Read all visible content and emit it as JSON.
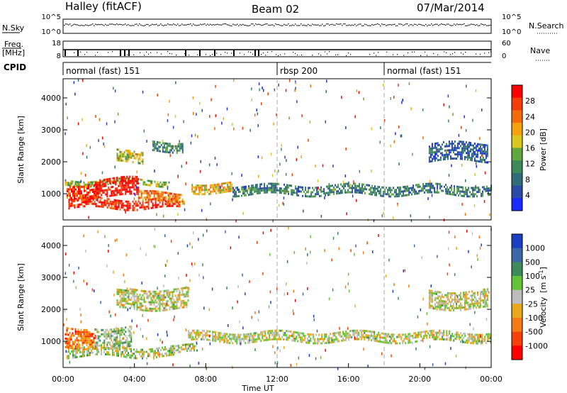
{
  "header": {
    "station": "Halley (fitACF)",
    "beam": "Beam 02",
    "date": "07/Mar/2014"
  },
  "status_panels": {
    "nsky_label": "N.Sky",
    "nsky_ticks": [
      "10^5",
      "10^0"
    ],
    "nsearch_label": "N.Search",
    "nsearch_ticks": [
      "10^5",
      "10^0"
    ],
    "freq_label_line1": "Freq.",
    "freq_label_line2": "[MHz]",
    "freq_ticks": [
      "18",
      "8"
    ],
    "nave_label": "Nave",
    "nave_ticks": [
      "60",
      "0"
    ],
    "cpid_label": "CPID",
    "cpid_segments": [
      {
        "label": "normal (fast) 151",
        "start_hour": 0,
        "end_hour": 12
      },
      {
        "label": "rbsp 200",
        "start_hour": 12,
        "end_hour": 18
      },
      {
        "label": "normal (fast) 151",
        "start_hour": 18,
        "end_hour": 24
      }
    ]
  },
  "axes": {
    "xlabel": "Time UT",
    "x_ticks": [
      "00:00",
      "04:00",
      "08:00",
      "12:00",
      "16:00",
      "20:00",
      "00:00"
    ],
    "ylabel": "Slant Range [km]",
    "y_ticks": [
      "1000",
      "2000",
      "3000",
      "4000"
    ]
  },
  "power_colorbar": {
    "label": "Power [dB]",
    "ticks": [
      "4",
      "8",
      "12",
      "16",
      "20",
      "24",
      "28"
    ],
    "colors": [
      "#1a2bff",
      "#2a4aa8",
      "#2f6e78",
      "#3d8b5a",
      "#5fa83d",
      "#d9c61f",
      "#f5a20c",
      "#f46b0a",
      "#f53d0a",
      "#ff0000"
    ]
  },
  "velocity_colorbar": {
    "label_prefix": "Velocity",
    "label_unit": "[m s",
    "label_sup": "-1",
    "label_close": "]",
    "ticks": [
      "1000",
      "500",
      "100",
      "25",
      "-25",
      "-100",
      "-500",
      "-1000"
    ],
    "colors": [
      "#1a3fc2",
      "#3a67a8",
      "#3d8a5a",
      "#62c435",
      "#bdbdbd",
      "#e8a818",
      "#f47a14",
      "#f5400a",
      "#ff0000"
    ]
  },
  "chart_data": [
    {
      "type": "heatmap",
      "title": "Power",
      "xlabel": "Time UT",
      "ylabel": "Slant Range [km]",
      "xlim": [
        0,
        24
      ],
      "ylim": [
        180,
        4600
      ],
      "colorbar": "Power [dB]",
      "clim": [
        0,
        30
      ],
      "regions": [
        {
          "t_start": 0.1,
          "t_end": 6.0,
          "r_min": 1300,
          "r_max": 1450,
          "value": 14
        },
        {
          "t_start": 0.2,
          "t_end": 2.0,
          "r_min": 850,
          "r_max": 1300,
          "value": 26
        },
        {
          "t_start": 1.8,
          "t_end": 4.2,
          "r_min": 950,
          "r_max": 1500,
          "value": 29
        },
        {
          "t_start": 0.3,
          "t_end": 6.5,
          "r_min": 580,
          "r_max": 850,
          "value": 27
        },
        {
          "t_start": 4.2,
          "t_end": 6.8,
          "r_min": 750,
          "r_max": 1050,
          "value": 22
        },
        {
          "t_start": 3.0,
          "t_end": 4.5,
          "r_min": 2000,
          "r_max": 2350,
          "value": 16
        },
        {
          "t_start": 5.0,
          "t_end": 6.7,
          "r_min": 2350,
          "r_max": 2650,
          "value": 10
        },
        {
          "t_start": 7.2,
          "t_end": 9.5,
          "r_min": 1050,
          "r_max": 1350,
          "value": 18
        },
        {
          "t_start": 9.5,
          "t_end": 24.0,
          "r_min": 1000,
          "r_max": 1280,
          "value": 9
        },
        {
          "t_start": 20.5,
          "t_end": 23.8,
          "r_min": 2050,
          "r_max": 2600,
          "value": 6
        }
      ]
    },
    {
      "type": "heatmap",
      "title": "Velocity",
      "xlabel": "Time UT",
      "ylabel": "Slant Range [km]",
      "xlim": [
        0,
        24
      ],
      "ylim": [
        180,
        4600
      ],
      "colorbar": "Velocity [m s-1]",
      "clim": [
        -1000,
        1000
      ],
      "regions": [
        {
          "t_start": 0.1,
          "t_end": 1.8,
          "r_min": 850,
          "r_max": 1450,
          "value": -500
        },
        {
          "t_start": 1.8,
          "t_end": 3.8,
          "r_min": 850,
          "r_max": 1450,
          "value": 150
        },
        {
          "t_start": 0.2,
          "t_end": 6.2,
          "r_min": 550,
          "r_max": 830,
          "value": 60
        },
        {
          "t_start": 6.2,
          "t_end": 7.5,
          "r_min": 650,
          "r_max": 880,
          "value": 0
        },
        {
          "t_start": 7.0,
          "t_end": 24.0,
          "r_min": 1000,
          "r_max": 1300,
          "value": 0
        },
        {
          "t_start": 3.0,
          "t_end": 7.0,
          "r_min": 2050,
          "r_max": 2650,
          "value": 0
        },
        {
          "t_start": 20.5,
          "t_end": 23.8,
          "r_min": 2050,
          "r_max": 2600,
          "value": 0
        }
      ]
    }
  ]
}
